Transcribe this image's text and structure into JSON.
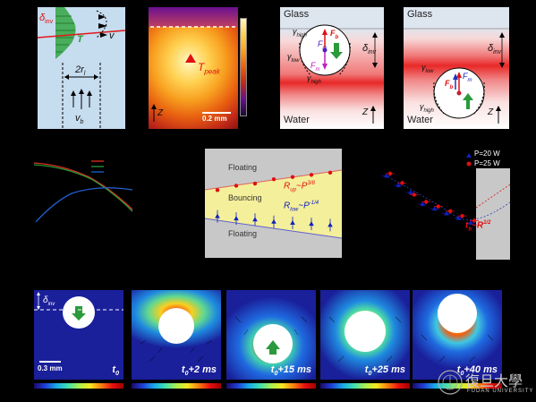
{
  "panel_a": {
    "delta_symbol": "δ",
    "delta_sub": "inv",
    "T_label": "T",
    "v_label": "v",
    "two_r_label": "2r",
    "two_r_sub": "l",
    "vb_label": "v",
    "vb_sub": "b",
    "colors": {
      "bg": "#c6dcef",
      "green": "#2a9a3a",
      "red": "#e01818"
    }
  },
  "panel_b": {
    "T_peak_label": "T",
    "T_peak_sub": "peak",
    "z_label": "Z",
    "scalebar_label": "0.2 mm"
  },
  "panel_c": {
    "glass_label": "Glass",
    "water_label": "Water",
    "gamma_high_top": "γ",
    "gamma_high_top_sub": "high",
    "gamma_low": "γ",
    "gamma_low_sub": "low",
    "gamma_high_bottom": "γ",
    "gamma_high_bottom_sub": "high",
    "Fb_label": "F",
    "Fb_sub": "b",
    "Fm_label": "F",
    "Fm_sub": "m",
    "delta_label": "δ",
    "delta_sub": "inv",
    "z_label": "Z"
  },
  "panel_d": {
    "glass_label": "Glass",
    "water_label": "Water",
    "gamma_low": "γ",
    "gamma_low_sub": "low",
    "gamma_high": "γ",
    "gamma_high_sub": "high",
    "Fb_label": "F",
    "Fb_sub": "b",
    "Fm_label": "F",
    "Fm_sub": "m",
    "delta_label": "δ",
    "delta_sub": "inv",
    "z_label": "Z"
  },
  "chart_left": {
    "series_colors": [
      "#e03020",
      "#2a9a3a",
      "#2060d0"
    ]
  },
  "chart_data": [
    {
      "type": "scatter",
      "title": "",
      "regions": [
        "Floating",
        "Bouncing",
        "Floating"
      ],
      "annotations": [
        {
          "text": "R",
          "sub": "up",
          "tail": "~P",
          "sup": "3/8",
          "color": "#e01010"
        },
        {
          "text": "R",
          "sub": "low",
          "tail": "~P",
          "sup": "-1/4",
          "color": "#1020c0"
        }
      ],
      "series": [
        {
          "name": "upper",
          "color": "#e01010",
          "x": [
            1,
            2,
            3,
            4,
            5,
            6,
            7
          ],
          "y": [
            3.1,
            3.3,
            3.4,
            3.6,
            3.7,
            3.8,
            3.9
          ]
        },
        {
          "name": "lower",
          "color": "#1020c0",
          "x": [
            1,
            2,
            3,
            4,
            5,
            6,
            7
          ],
          "y": [
            1.9,
            1.8,
            1.75,
            1.65,
            1.6,
            1.55,
            1.5
          ]
        }
      ]
    },
    {
      "type": "scatter",
      "title": "",
      "legend": [
        {
          "label": "P=20 W",
          "marker": "triangle",
          "color": "#1020c0"
        },
        {
          "label": "P=25 W",
          "marker": "circle",
          "color": "#e01010"
        }
      ],
      "annotations": [
        {
          "text": "t",
          "sub": "b",
          "tail": "~R",
          "sup": "1/2",
          "color": "#e01010"
        }
      ],
      "series": [
        {
          "name": "P=20 W",
          "color": "#1020c0",
          "x": [
            1,
            2,
            3,
            4,
            5,
            6,
            7,
            8
          ],
          "y": [
            4.8,
            4.4,
            4.1,
            3.6,
            3.4,
            3.2,
            3.0,
            2.8
          ]
        },
        {
          "name": "P=25 W",
          "color": "#e01010",
          "x": [
            1,
            2,
            3,
            4,
            5,
            6,
            7,
            8
          ],
          "y": [
            4.9,
            4.5,
            4.0,
            3.7,
            3.5,
            3.3,
            3.1,
            2.9
          ]
        }
      ]
    }
  ],
  "sequence": {
    "delta_label": "δ",
    "delta_sub": "inv",
    "scalebar_label": "0.3 mm",
    "frames": [
      {
        "t": "t",
        "sub": "0",
        "suffix": ""
      },
      {
        "t": "t",
        "sub": "0",
        "suffix": "+2 ms"
      },
      {
        "t": "t",
        "sub": "0",
        "suffix": "+15 ms"
      },
      {
        "t": "t",
        "sub": "0",
        "suffix": "+25 ms"
      },
      {
        "t": "t",
        "sub": "0",
        "suffix": "+40 ms"
      }
    ]
  },
  "logo": {
    "chinese": "復旦大學",
    "english": "FUDAN UNIVERSITY"
  }
}
